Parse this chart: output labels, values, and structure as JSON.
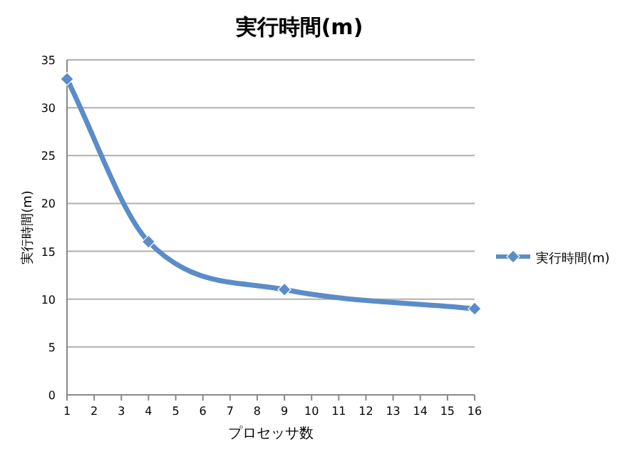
{
  "chart_data": {
    "type": "line",
    "title": "実行時間(m)",
    "xlabel": "プロセッサ数",
    "ylabel": "実行時間(m)",
    "x": [
      1,
      4,
      9,
      16
    ],
    "series": [
      {
        "name": "実行時間(m)",
        "color": "#5b8cc8",
        "values": [
          33,
          16,
          11,
          9
        ]
      }
    ],
    "xlim": [
      1,
      16
    ],
    "xticks": [
      1,
      2,
      3,
      4,
      5,
      6,
      7,
      8,
      9,
      10,
      11,
      12,
      13,
      14,
      15,
      16
    ],
    "ylim": [
      0,
      35
    ],
    "yticks": [
      0,
      5,
      10,
      15,
      20,
      25,
      30,
      35
    ],
    "grid": "y",
    "legend": "right",
    "marker": "diamond",
    "line_style": "solid"
  }
}
